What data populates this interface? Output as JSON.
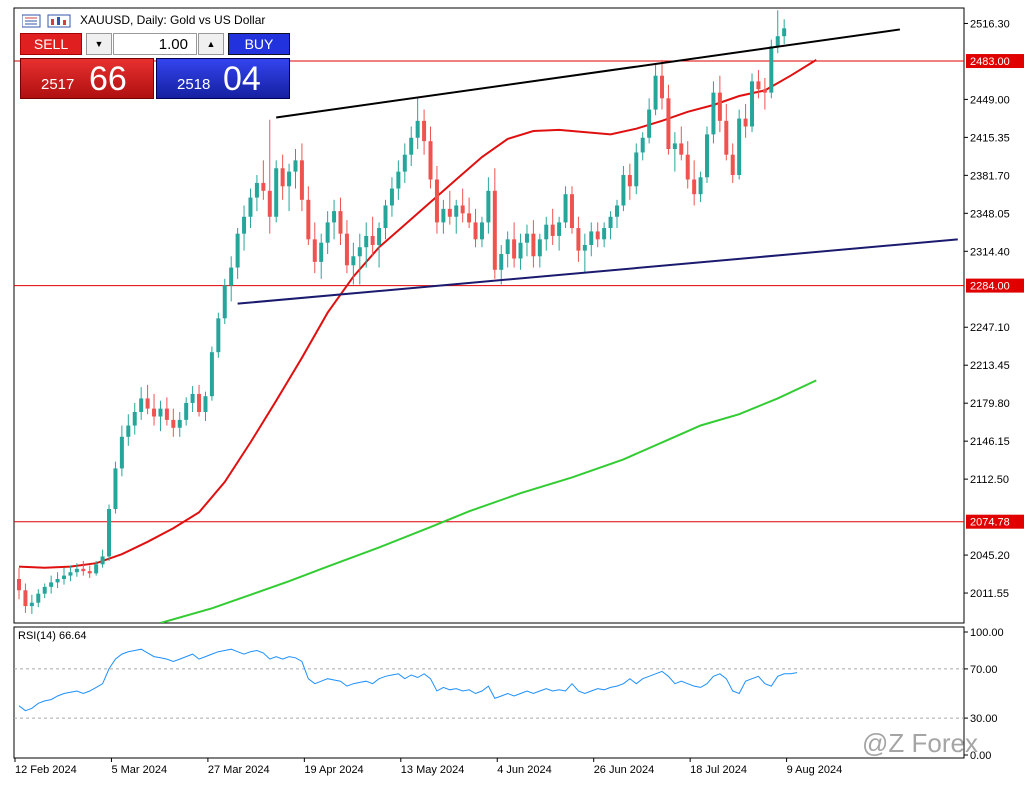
{
  "window": {
    "title": "XAUUSD, Daily:  Gold vs US Dollar"
  },
  "trade_panel": {
    "sell_label": "SELL",
    "buy_label": "BUY",
    "lot_value": "1.00",
    "sell_price_small": "2517",
    "sell_price_big": "66",
    "buy_price_small": "2518",
    "buy_price_big": "04",
    "lot_down_icon": "triangle-down-icon",
    "lot_up_icon": "triangle-up-icon"
  },
  "watermark": "@Z Forex",
  "chart_data": {
    "type": "candlestick",
    "symbol": "XAUUSD",
    "timeframe": "Daily",
    "title": "XAUUSD, Daily:  Gold vs US Dollar",
    "ylim": [
      1985,
      2530
    ],
    "y_ticks": [
      2516.3,
      2449.0,
      2415.35,
      2381.7,
      2348.05,
      2314.4,
      2247.1,
      2213.45,
      2179.8,
      2146.15,
      2112.5,
      2045.2,
      2011.55
    ],
    "x_tick_labels": [
      "12 Feb 2024",
      "5 Mar 2024",
      "27 Mar 2024",
      "19 Apr 2024",
      "13 May 2024",
      "4 Jun 2024",
      "26 Jun 2024",
      "18 Jul 2024",
      "9 Aug 2024"
    ],
    "x_tick_bar_index": [
      0,
      15,
      30,
      45,
      60,
      75,
      90,
      105,
      120
    ],
    "horizontal_levels": [
      {
        "value": 2483.0,
        "label": "2483.00",
        "color": "#e00000"
      },
      {
        "value": 2284.0,
        "label": "2284.00",
        "color": "#e00000"
      },
      {
        "value": 2074.78,
        "label": "2074.78",
        "color": "#e00000"
      }
    ],
    "trendlines": [
      {
        "name": "upper-channel",
        "color": "#000000",
        "from": [
          40,
          2433
        ],
        "to": [
          137,
          2511
        ]
      },
      {
        "name": "lower-channel",
        "color": "#1a1a6e",
        "from": [
          34,
          2268
        ],
        "to": [
          146,
          2325
        ]
      }
    ],
    "ma_red": [
      [
        0,
        2035
      ],
      [
        4,
        2034
      ],
      [
        8,
        2035
      ],
      [
        12,
        2038
      ],
      [
        16,
        2046
      ],
      [
        20,
        2057
      ],
      [
        24,
        2069
      ],
      [
        28,
        2083
      ],
      [
        32,
        2110
      ],
      [
        36,
        2145
      ],
      [
        40,
        2182
      ],
      [
        44,
        2220
      ],
      [
        48,
        2260
      ],
      [
        52,
        2292
      ],
      [
        56,
        2318
      ],
      [
        60,
        2338
      ],
      [
        64,
        2358
      ],
      [
        68,
        2378
      ],
      [
        72,
        2398
      ],
      [
        76,
        2414
      ],
      [
        80,
        2421
      ],
      [
        84,
        2422
      ],
      [
        88,
        2420
      ],
      [
        92,
        2418
      ],
      [
        96,
        2423
      ],
      [
        100,
        2430
      ],
      [
        104,
        2438
      ],
      [
        108,
        2444
      ],
      [
        112,
        2452
      ],
      [
        116,
        2457
      ],
      [
        120,
        2470
      ],
      [
        124,
        2484
      ]
    ],
    "ma_green": [
      [
        22,
        1985
      ],
      [
        30,
        1998
      ],
      [
        36,
        2010
      ],
      [
        42,
        2022
      ],
      [
        48,
        2035
      ],
      [
        56,
        2052
      ],
      [
        64,
        2070
      ],
      [
        70,
        2084
      ],
      [
        78,
        2100
      ],
      [
        86,
        2114
      ],
      [
        94,
        2130
      ],
      [
        102,
        2150
      ],
      [
        106,
        2160
      ],
      [
        112,
        2170
      ],
      [
        118,
        2184
      ],
      [
        124,
        2200
      ]
    ],
    "candles": [
      [
        2024,
        2034,
        2006,
        2014
      ],
      [
        2014,
        2020,
        1994,
        2000
      ],
      [
        2000,
        2010,
        1993,
        2003
      ],
      [
        2003,
        2015,
        1999,
        2011
      ],
      [
        2011,
        2020,
        2007,
        2017
      ],
      [
        2017,
        2027,
        2011,
        2021
      ],
      [
        2021,
        2030,
        2016,
        2024
      ],
      [
        2024,
        2034,
        2019,
        2027
      ],
      [
        2027,
        2036,
        2022,
        2030
      ],
      [
        2030,
        2038,
        2026,
        2033
      ],
      [
        2033,
        2040,
        2027,
        2031
      ],
      [
        2031,
        2036,
        2025,
        2029
      ],
      [
        2029,
        2040,
        2027,
        2037
      ],
      [
        2037,
        2050,
        2034,
        2044
      ],
      [
        2044,
        2090,
        2040,
        2086
      ],
      [
        2086,
        2128,
        2082,
        2122
      ],
      [
        2122,
        2160,
        2115,
        2150
      ],
      [
        2150,
        2170,
        2142,
        2160
      ],
      [
        2160,
        2180,
        2152,
        2172
      ],
      [
        2172,
        2194,
        2165,
        2184
      ],
      [
        2184,
        2196,
        2170,
        2175
      ],
      [
        2175,
        2188,
        2160,
        2168
      ],
      [
        2168,
        2182,
        2155,
        2175
      ],
      [
        2175,
        2185,
        2160,
        2165
      ],
      [
        2165,
        2175,
        2150,
        2158
      ],
      [
        2158,
        2172,
        2150,
        2165
      ],
      [
        2165,
        2185,
        2160,
        2180
      ],
      [
        2180,
        2195,
        2172,
        2188
      ],
      [
        2188,
        2196,
        2168,
        2172
      ],
      [
        2172,
        2190,
        2164,
        2186
      ],
      [
        2186,
        2230,
        2182,
        2225
      ],
      [
        2225,
        2260,
        2220,
        2255
      ],
      [
        2255,
        2290,
        2250,
        2284
      ],
      [
        2284,
        2310,
        2270,
        2300
      ],
      [
        2300,
        2335,
        2290,
        2330
      ],
      [
        2330,
        2355,
        2315,
        2345
      ],
      [
        2345,
        2370,
        2335,
        2362
      ],
      [
        2362,
        2382,
        2350,
        2375
      ],
      [
        2375,
        2395,
        2360,
        2368
      ],
      [
        2368,
        2431,
        2330,
        2345
      ],
      [
        2345,
        2395,
        2340,
        2388
      ],
      [
        2388,
        2400,
        2360,
        2372
      ],
      [
        2372,
        2392,
        2350,
        2385
      ],
      [
        2385,
        2405,
        2370,
        2395
      ],
      [
        2395,
        2410,
        2350,
        2360
      ],
      [
        2360,
        2372,
        2320,
        2325
      ],
      [
        2325,
        2340,
        2295,
        2305
      ],
      [
        2305,
        2330,
        2290,
        2322
      ],
      [
        2322,
        2350,
        2312,
        2340
      ],
      [
        2340,
        2360,
        2325,
        2350
      ],
      [
        2350,
        2362,
        2320,
        2330
      ],
      [
        2330,
        2342,
        2295,
        2302
      ],
      [
        2302,
        2322,
        2285,
        2310
      ],
      [
        2310,
        2330,
        2285,
        2318
      ],
      [
        2318,
        2340,
        2300,
        2328
      ],
      [
        2328,
        2345,
        2310,
        2320
      ],
      [
        2320,
        2340,
        2300,
        2335
      ],
      [
        2335,
        2360,
        2325,
        2355
      ],
      [
        2355,
        2380,
        2345,
        2370
      ],
      [
        2370,
        2395,
        2360,
        2385
      ],
      [
        2385,
        2410,
        2375,
        2400
      ],
      [
        2400,
        2425,
        2390,
        2415
      ],
      [
        2415,
        2450,
        2405,
        2430
      ],
      [
        2430,
        2440,
        2400,
        2412
      ],
      [
        2412,
        2425,
        2370,
        2378
      ],
      [
        2378,
        2390,
        2330,
        2340
      ],
      [
        2340,
        2360,
        2330,
        2352
      ],
      [
        2352,
        2368,
        2338,
        2345
      ],
      [
        2345,
        2360,
        2330,
        2355
      ],
      [
        2355,
        2370,
        2340,
        2348
      ],
      [
        2348,
        2362,
        2335,
        2340
      ],
      [
        2340,
        2352,
        2318,
        2325
      ],
      [
        2325,
        2345,
        2318,
        2340
      ],
      [
        2340,
        2380,
        2330,
        2368
      ],
      [
        2368,
        2388,
        2290,
        2298
      ],
      [
        2298,
        2320,
        2285,
        2312
      ],
      [
        2312,
        2332,
        2300,
        2325
      ],
      [
        2325,
        2340,
        2300,
        2308
      ],
      [
        2308,
        2330,
        2298,
        2322
      ],
      [
        2322,
        2338,
        2310,
        2330
      ],
      [
        2330,
        2342,
        2300,
        2310
      ],
      [
        2310,
        2330,
        2300,
        2325
      ],
      [
        2325,
        2345,
        2315,
        2338
      ],
      [
        2338,
        2352,
        2320,
        2328
      ],
      [
        2328,
        2345,
        2315,
        2340
      ],
      [
        2340,
        2372,
        2335,
        2365
      ],
      [
        2365,
        2372,
        2330,
        2335
      ],
      [
        2335,
        2345,
        2305,
        2315
      ],
      [
        2315,
        2330,
        2295,
        2320
      ],
      [
        2320,
        2340,
        2310,
        2332
      ],
      [
        2332,
        2340,
        2318,
        2325
      ],
      [
        2325,
        2340,
        2318,
        2335
      ],
      [
        2335,
        2350,
        2325,
        2345
      ],
      [
        2345,
        2360,
        2335,
        2355
      ],
      [
        2355,
        2390,
        2350,
        2382
      ],
      [
        2382,
        2392,
        2360,
        2372
      ],
      [
        2372,
        2410,
        2365,
        2402
      ],
      [
        2402,
        2420,
        2395,
        2415
      ],
      [
        2415,
        2450,
        2410,
        2440
      ],
      [
        2440,
        2480,
        2435,
        2470
      ],
      [
        2470,
        2484,
        2440,
        2450
      ],
      [
        2450,
        2462,
        2400,
        2405
      ],
      [
        2405,
        2420,
        2385,
        2410
      ],
      [
        2410,
        2425,
        2395,
        2400
      ],
      [
        2400,
        2412,
        2370,
        2378
      ],
      [
        2378,
        2395,
        2355,
        2365
      ],
      [
        2365,
        2385,
        2358,
        2380
      ],
      [
        2380,
        2425,
        2375,
        2418
      ],
      [
        2418,
        2465,
        2410,
        2455
      ],
      [
        2455,
        2470,
        2420,
        2430
      ],
      [
        2430,
        2445,
        2395,
        2400
      ],
      [
        2400,
        2410,
        2375,
        2382
      ],
      [
        2382,
        2440,
        2378,
        2432
      ],
      [
        2432,
        2445,
        2415,
        2425
      ],
      [
        2425,
        2472,
        2420,
        2465
      ],
      [
        2465,
        2475,
        2450,
        2458
      ],
      [
        2458,
        2468,
        2440,
        2455
      ],
      [
        2455,
        2502,
        2450,
        2496
      ],
      [
        2496,
        2528,
        2490,
        2505
      ],
      [
        2505,
        2520,
        2498,
        2512
      ]
    ],
    "rsi": {
      "label": "RSI(14) 66.64",
      "ylim": [
        0,
        100
      ],
      "levels": [
        70,
        30
      ],
      "y_ticks": [
        100.0,
        70.0,
        30.0,
        0.0
      ],
      "values": [
        40,
        36,
        38,
        42,
        44,
        45,
        48,
        50,
        51,
        52,
        50,
        52,
        55,
        58,
        70,
        78,
        82,
        84,
        85,
        86,
        83,
        80,
        79,
        78,
        76,
        78,
        80,
        82,
        78,
        80,
        82,
        84,
        85,
        86,
        84,
        82,
        84,
        85,
        83,
        78,
        80,
        78,
        80,
        79,
        76,
        62,
        58,
        60,
        62,
        61,
        60,
        56,
        58,
        59,
        60,
        58,
        62,
        64,
        65,
        66,
        62,
        65,
        63,
        66,
        62,
        52,
        55,
        53,
        54,
        52,
        53,
        50,
        52,
        56,
        46,
        48,
        50,
        48,
        50,
        52,
        50,
        52,
        54,
        52,
        53,
        52,
        58,
        52,
        50,
        52,
        54,
        53,
        55,
        56,
        58,
        62,
        58,
        62,
        64,
        66,
        68,
        64,
        58,
        60,
        58,
        56,
        55,
        58,
        64,
        66,
        62,
        52,
        50,
        60,
        62,
        64,
        58,
        56,
        64,
        66,
        66,
        67
      ]
    }
  }
}
